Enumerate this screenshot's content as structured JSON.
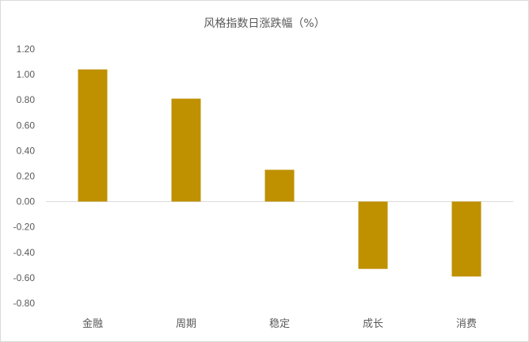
{
  "chart_data": {
    "type": "bar",
    "title": "风格指数日涨跌幅（%）",
    "categories": [
      "金融",
      "周期",
      "稳定",
      "成长",
      "消费"
    ],
    "values": [
      1.04,
      0.81,
      0.25,
      -0.53,
      -0.59
    ],
    "ylim": [
      -0.8,
      1.2
    ],
    "yticks": [
      "1.20",
      "1.00",
      "0.80",
      "0.60",
      "0.40",
      "0.20",
      "0.00",
      "-0.20",
      "-0.40",
      "-0.60",
      "-0.80"
    ],
    "xlabel": "",
    "ylabel": "",
    "grid": false,
    "legend": "none",
    "bar_color": "#BF9000"
  }
}
